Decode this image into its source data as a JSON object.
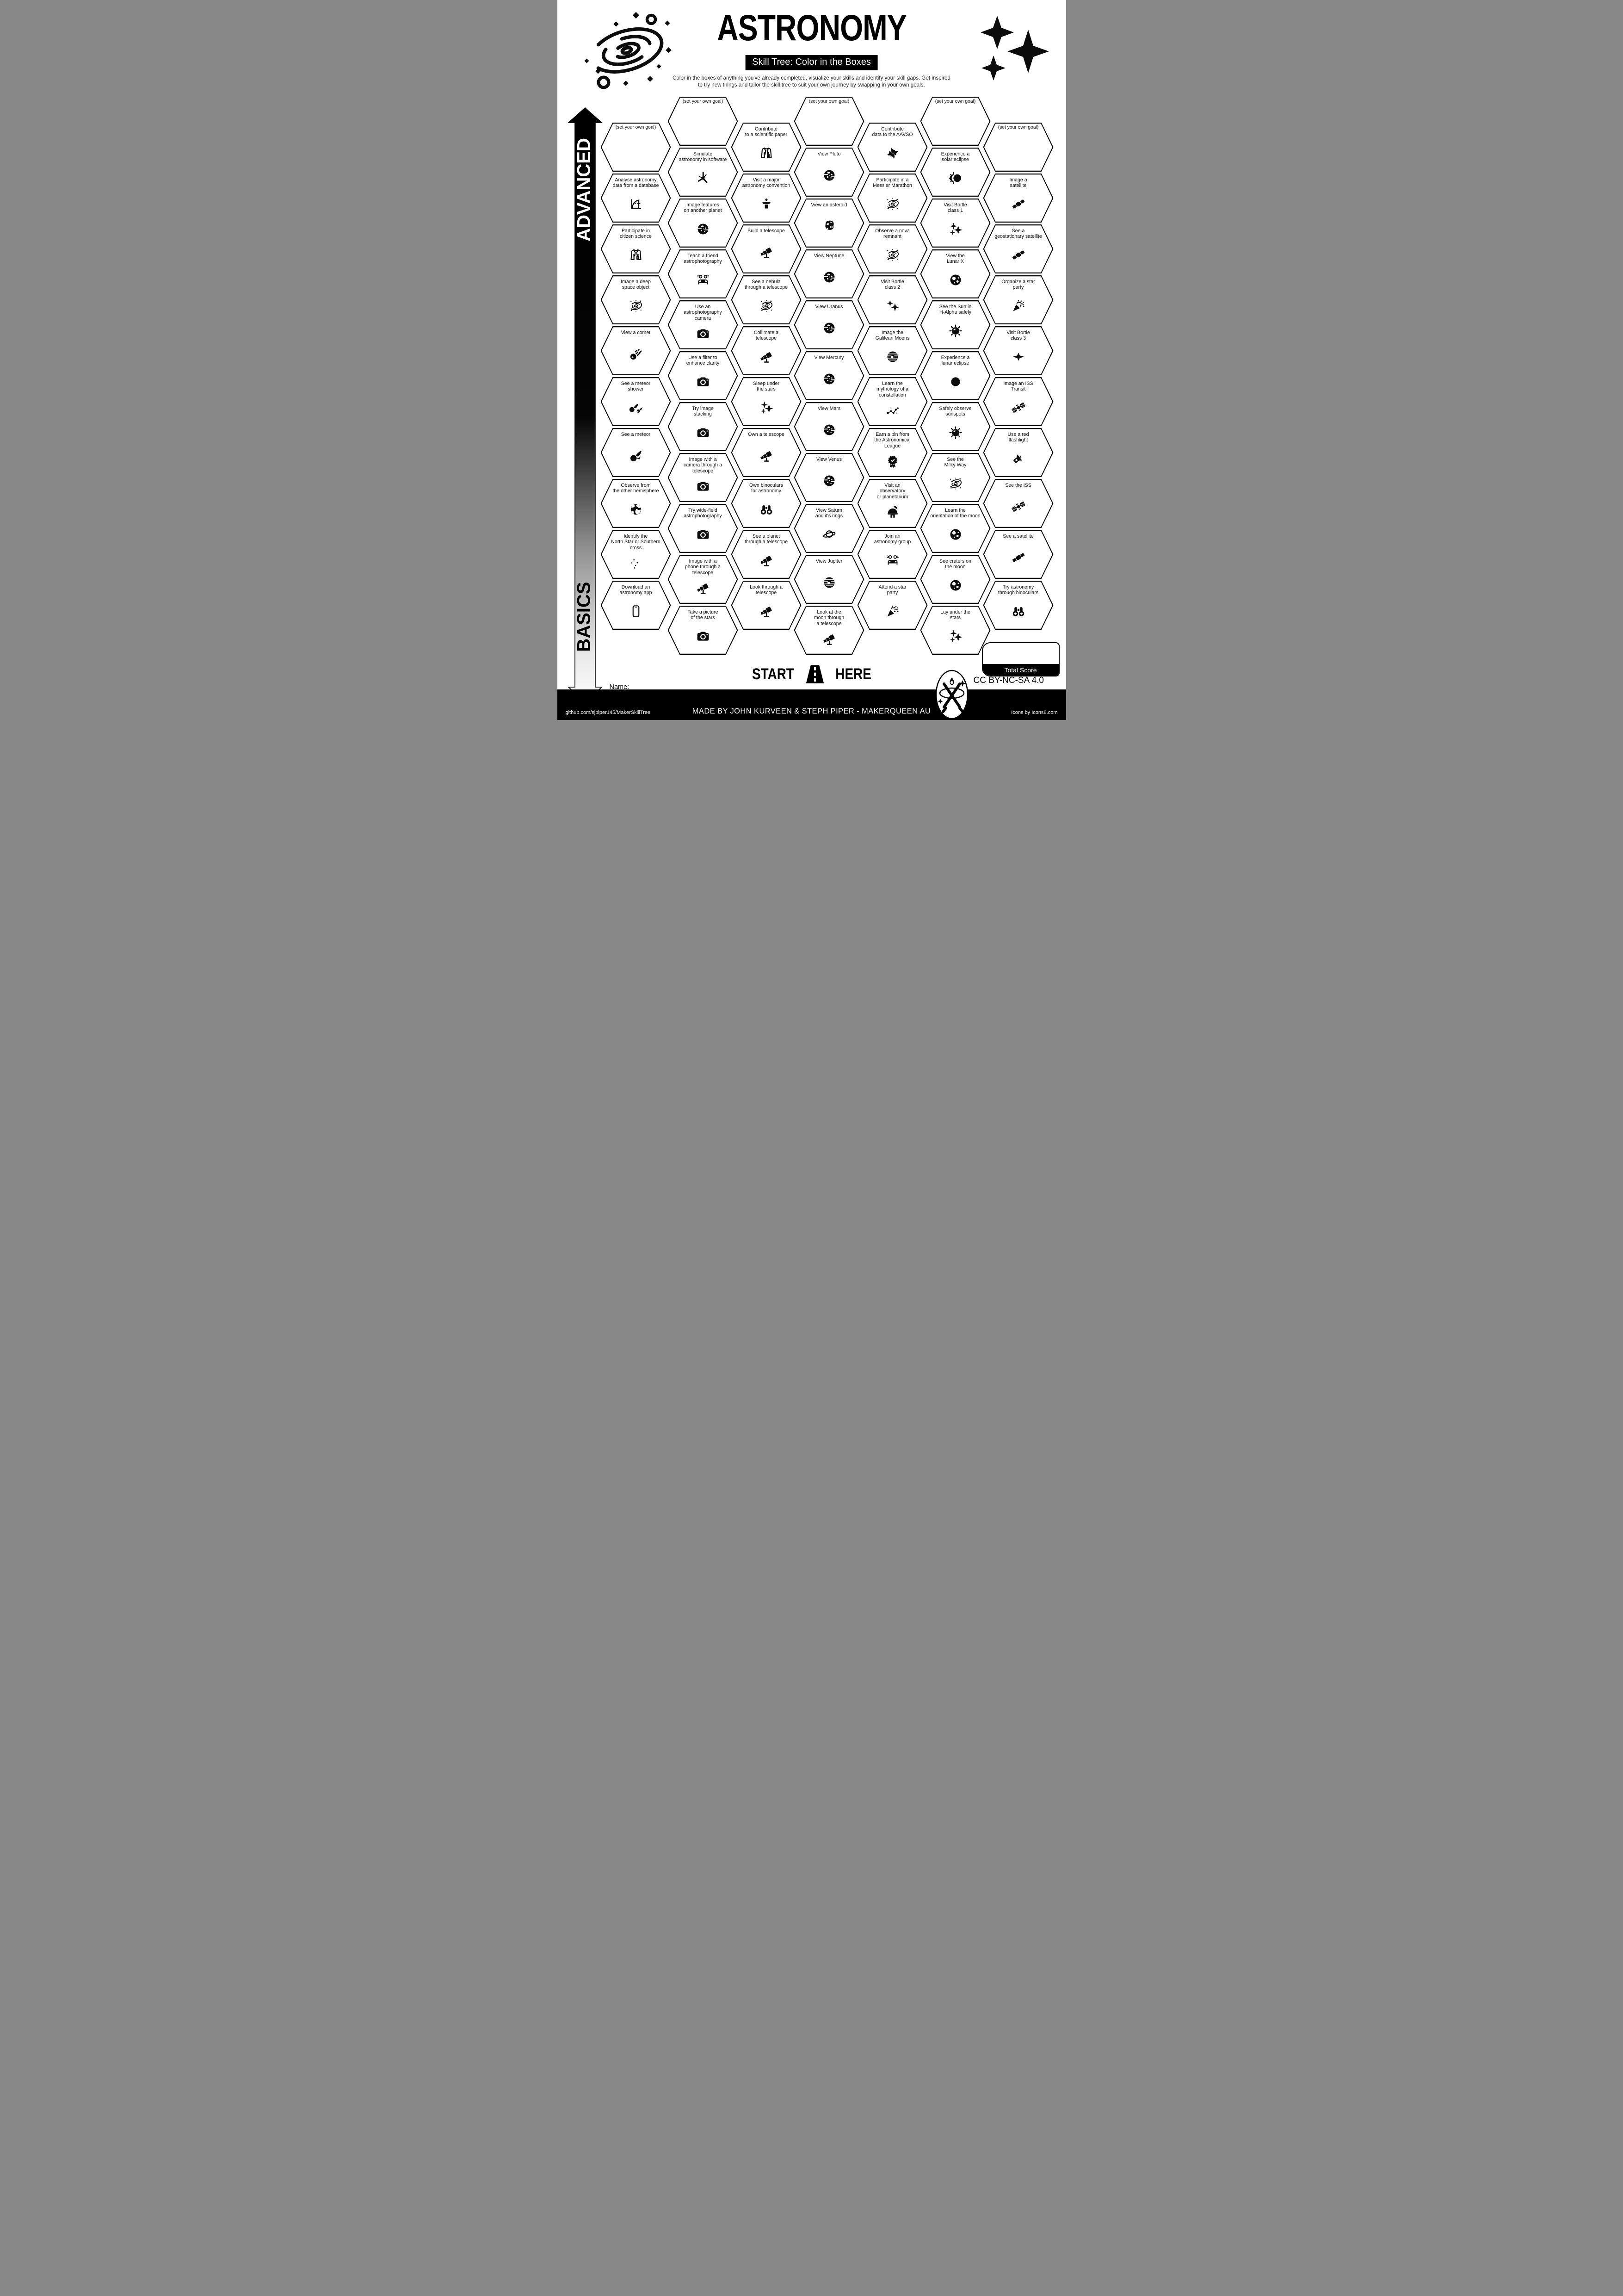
{
  "header": {
    "title": "ASTRONOMY",
    "subtitle": "Skill Tree: Color in the Boxes",
    "description": "Color in the boxes of anything you've already completed, visualize your skills and identify your skill gaps.  Get inspired\nto try new things and tailor the skill tree to suit your own journey by swapping in your own goals."
  },
  "axis": {
    "top_label": "ADVANCED",
    "bottom_label": "BASICS"
  },
  "start": {
    "start_label": "START",
    "here_label": "HERE"
  },
  "name_field": {
    "label": "Name:"
  },
  "score": {
    "tile_note": "1 tile = 1 point",
    "total_label": "Total Score"
  },
  "license": {
    "text": "CC BY-NC-SA 4.0"
  },
  "footer": {
    "left": "github.com/sjpiper145/MakerSkillTree",
    "center": "MADE BY JOHN KURVEEN & STEPH PIPER  -  MAKERQUEEN AU",
    "right": "Icons by Icons8.com"
  },
  "colors": {
    "ink": "#000000",
    "paper": "#ffffff"
  },
  "columns": [
    {
      "tiles": [
        {
          "label": "(set your own goal)",
          "goal": true
        },
        {
          "label": "Analyse astronomy\ndata from a database",
          "icon": "chart-icon"
        },
        {
          "label": "Participate in\ncitizen science",
          "icon": "lab-coat-icon"
        },
        {
          "label": "Image a deep\nspace object",
          "icon": "spiral-galaxy-icon"
        },
        {
          "label": "View a comet",
          "icon": "comet-icon"
        },
        {
          "label": "See a meteor\nshower",
          "icon": "meteor-shower-icon"
        },
        {
          "label": "See a meteor",
          "icon": "meteor-icon"
        },
        {
          "label": "Observe from\nthe other hemisphere",
          "icon": "earth-icon"
        },
        {
          "label": "Identify the\nNorth Star or Southern\ncross",
          "icon": "star-field-icon"
        },
        {
          "label": "Download an\nastronomy app",
          "icon": "phone-icon"
        }
      ]
    },
    {
      "tiles": [
        {
          "label": "(set your own goal)",
          "goal": true
        },
        {
          "label": "Simulate\nastronomy in software",
          "icon": "simulation-icon"
        },
        {
          "label": "Image features\non another planet",
          "icon": "planet-icon"
        },
        {
          "label": "Teach a friend\nastrophotography",
          "icon": "people-icon"
        },
        {
          "label": "Use an\nastrophotography\ncamera",
          "icon": "camera-icon"
        },
        {
          "label": "Use a filter to\nenhance clarity",
          "icon": "camera-icon"
        },
        {
          "label": "Try image\nstacking",
          "icon": "camera-icon"
        },
        {
          "label": "Image with a\ncamera through a\ntelescope",
          "icon": "camera-icon"
        },
        {
          "label": "Try wide-field\nastrophotography",
          "icon": "camera-icon"
        },
        {
          "label": "Image with a\nphone through a\ntelescope",
          "icon": "telescope-icon"
        },
        {
          "label": "Take a picture\nof the stars",
          "icon": "camera-icon"
        }
      ]
    },
    {
      "tiles": [
        {
          "label": "Contribute\nto a scientific paper",
          "icon": "lab-coat-icon"
        },
        {
          "label": "Visit a major\nastronomy convention",
          "icon": "podium-icon"
        },
        {
          "label": "Build a telescope",
          "icon": "telescope-icon"
        },
        {
          "label": "See a nebula\nthrough a telescope",
          "icon": "spiral-galaxy-icon"
        },
        {
          "label": "Collimate a\ntelescope",
          "icon": "telescope-icon"
        },
        {
          "label": "Sleep under\nthe stars",
          "icon": "sparkles-icon"
        },
        {
          "label": "Own a telescope",
          "icon": "telescope-icon"
        },
        {
          "label": "Own binoculars\nfor astronomy",
          "icon": "binoculars-icon"
        },
        {
          "label": "See a planet\nthrough a telescope",
          "icon": "telescope-icon"
        },
        {
          "label": "Look through a\ntelescope",
          "icon": "telescope-icon"
        }
      ]
    },
    {
      "tiles": [
        {
          "label": "(set your own goal)",
          "goal": true
        },
        {
          "label": "View Pluto",
          "icon": "planet-icon"
        },
        {
          "label": "View an asteroid",
          "icon": "asteroid-icon"
        },
        {
          "label": "View Neptune",
          "icon": "planet-icon"
        },
        {
          "label": "View Uranus",
          "icon": "planet-icon"
        },
        {
          "label": "View Mercury",
          "icon": "planet-icon"
        },
        {
          "label": "View Mars",
          "icon": "planet-icon"
        },
        {
          "label": "View Venus",
          "icon": "planet-icon"
        },
        {
          "label": "View Saturn\nand it's rings",
          "icon": "saturn-icon"
        },
        {
          "label": "View Jupiter",
          "icon": "jupiter-icon"
        },
        {
          "label": "Look at the\nmoon through\na telescope",
          "icon": "telescope-icon"
        }
      ]
    },
    {
      "tiles": [
        {
          "label": "Contribute\ndata to the AAVSO",
          "icon": "pinwheel-icon"
        },
        {
          "label": "Participate in a\nMessier Marathon",
          "icon": "spiral-galaxy-icon"
        },
        {
          "label": "Observe a nova\nremnant",
          "icon": "spiral-galaxy-icon"
        },
        {
          "label": "Visit Bortle\nclass 2",
          "icon": "sparkles-two-icon"
        },
        {
          "label": "Image the\nGalilean Moons",
          "icon": "jupiter-icon"
        },
        {
          "label": "Learn the\nmythology of a\nconstellation",
          "icon": "constellation-icon"
        },
        {
          "label": "Earn a pin from\nthe Astronomical League",
          "icon": "badge-icon"
        },
        {
          "label": "Visit an\nobservatory\nor planetarium",
          "icon": "observatory-icon"
        },
        {
          "label": "Join an\nastronomy group",
          "icon": "people-icon"
        },
        {
          "label": "Attend a star\nparty",
          "icon": "party-popper-icon"
        }
      ]
    },
    {
      "tiles": [
        {
          "label": "(set your own goal)",
          "goal": true
        },
        {
          "label": "Experience a\nsolar eclipse",
          "icon": "solar-eclipse-icon"
        },
        {
          "label": "Visit Bortle\nclass 1",
          "icon": "sparkles-icon"
        },
        {
          "label": "View the\nLunar X",
          "icon": "moon-icon"
        },
        {
          "label": "See the Sun in\nH-Alpha safely",
          "icon": "sun-icon"
        },
        {
          "label": "Experience a\nlunar eclipse",
          "icon": "lunar-eclipse-icon"
        },
        {
          "label": "Safely observe\nsunspots",
          "icon": "sun-icon"
        },
        {
          "label": "See the\nMilky Way",
          "icon": "spiral-galaxy-icon"
        },
        {
          "label": "Learn the\norientation of the moon",
          "icon": "moon-icon"
        },
        {
          "label": "See craters on\nthe moon",
          "icon": "moon-icon"
        },
        {
          "label": "Lay under the\nstars",
          "icon": "sparkles-icon"
        }
      ]
    },
    {
      "tiles": [
        {
          "label": "(set your own goal)",
          "goal": true
        },
        {
          "label": "Image a\nsatellite",
          "icon": "satellite-icon"
        },
        {
          "label": "See a\ngeostationary satellite",
          "icon": "satellite-icon"
        },
        {
          "label": "Organize a star\nparty",
          "icon": "party-popper-icon"
        },
        {
          "label": "Visit Bortle\nclass 3",
          "icon": "sparkle-one-icon"
        },
        {
          "label": "Image an ISS\nTransit",
          "icon": "iss-icon"
        },
        {
          "label": "Use a red\nflashlight",
          "icon": "flashlight-icon"
        },
        {
          "label": "See the ISS",
          "icon": "iss-icon"
        },
        {
          "label": "See a satellite",
          "icon": "satellite-icon"
        },
        {
          "label": "Try astronomy\nthrough binoculars",
          "icon": "binoculars-icon"
        }
      ]
    }
  ]
}
